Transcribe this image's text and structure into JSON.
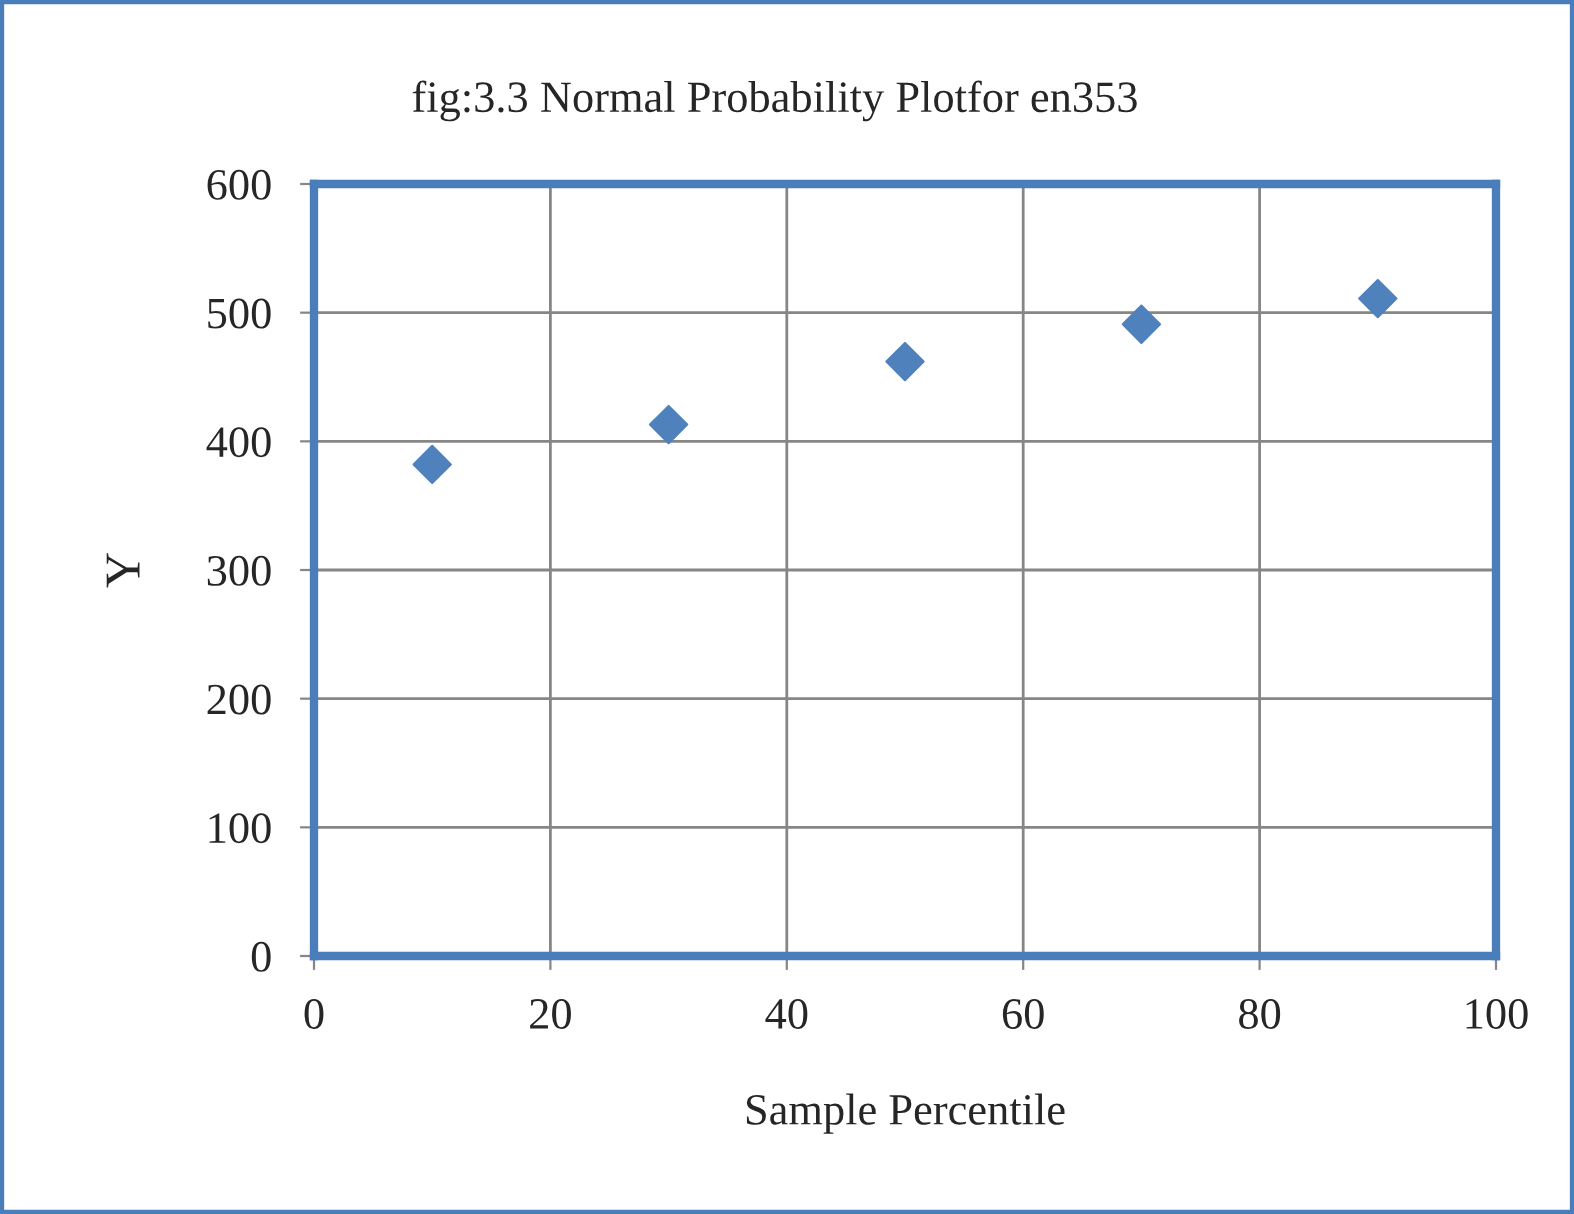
{
  "chart_data": {
    "type": "scatter",
    "title": "fig:3.3 Normal Probability Plotfor en353",
    "xlabel": "Sample Percentile",
    "ylabel": "Y",
    "x": [
      10,
      30,
      50,
      70,
      90
    ],
    "series": [
      {
        "color": "#4f81bd",
        "values": [
          382,
          413,
          462,
          491,
          511
        ]
      }
    ],
    "xlim": [
      0,
      100
    ],
    "xticks": [
      0,
      20,
      40,
      60,
      80,
      100
    ],
    "ylim": [
      0,
      600
    ],
    "yticks": [
      0,
      100,
      200,
      300,
      400,
      500,
      600
    ],
    "grid": true,
    "marker": "diamond",
    "legend": false
  }
}
